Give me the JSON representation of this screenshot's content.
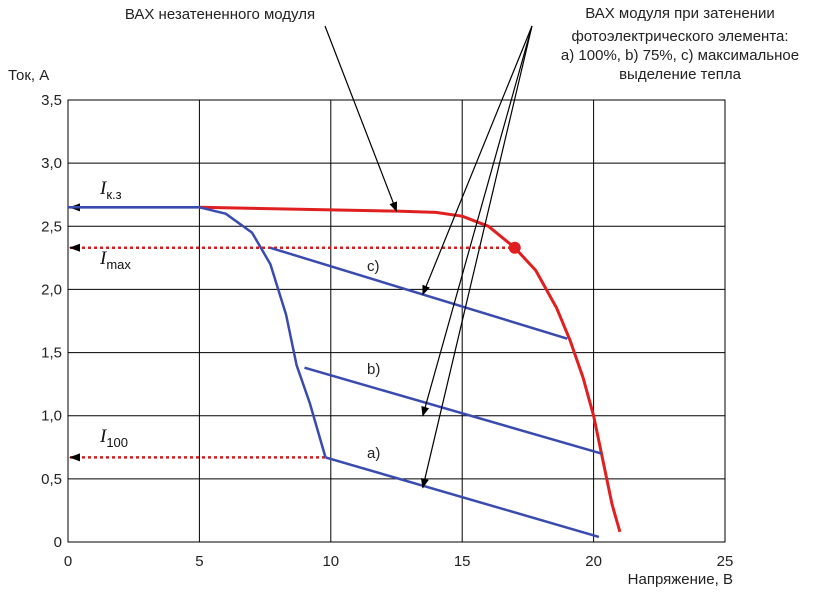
{
  "chart_data": {
    "type": "line",
    "title": "",
    "xlabel": "Напряжение, В",
    "ylabel": "Ток, А",
    "xlim": [
      0,
      25
    ],
    "ylim": [
      0,
      3.5
    ],
    "grid": true,
    "xticks": [
      0,
      5,
      10,
      15,
      20,
      25
    ],
    "yticks": [
      0.5,
      1.0,
      1.5,
      2.0,
      2.5,
      3.0,
      3.5
    ],
    "x_tick_labels": [
      "0",
      "5",
      "10",
      "15",
      "20",
      "25"
    ],
    "y_tick_labels": [
      "0,5",
      "1,0",
      "1,5",
      "2,0",
      "2,5",
      "3,0",
      "3,5"
    ],
    "y_origin_label": "0",
    "colors": {
      "unshaded": "#e02020",
      "shaded": "#3a4bb0",
      "guide": "#d42020",
      "grid": "#000000"
    },
    "series": [
      {
        "key": "unshaded",
        "points": [
          [
            5.0,
            2.65
          ],
          [
            10.0,
            2.63
          ],
          [
            12.5,
            2.62
          ],
          [
            14.0,
            2.61
          ],
          [
            15.0,
            2.58
          ],
          [
            16.0,
            2.5
          ],
          [
            17.0,
            2.33
          ],
          [
            17.8,
            2.15
          ],
          [
            18.6,
            1.85
          ],
          [
            19.1,
            1.6
          ],
          [
            19.6,
            1.3
          ],
          [
            20.0,
            1.0
          ],
          [
            20.4,
            0.6
          ],
          [
            20.7,
            0.3
          ],
          [
            21.0,
            0.08
          ]
        ]
      },
      {
        "key": "shaded",
        "points": [
          [
            0.0,
            2.65
          ],
          [
            5.0,
            2.65
          ],
          [
            6.0,
            2.6
          ],
          [
            7.0,
            2.45
          ],
          [
            7.7,
            2.2
          ],
          [
            8.3,
            1.8
          ],
          [
            8.7,
            1.4
          ],
          [
            9.2,
            1.1
          ],
          [
            9.8,
            0.67
          ]
        ]
      },
      {
        "key": "a",
        "name": "a)",
        "points": [
          [
            9.8,
            0.67
          ],
          [
            20.2,
            0.04
          ]
        ]
      },
      {
        "key": "b",
        "name": "b)",
        "points": [
          [
            9.0,
            1.38
          ],
          [
            20.3,
            0.7
          ]
        ]
      },
      {
        "key": "c",
        "name": "c)",
        "points": [
          [
            7.7,
            2.33
          ],
          [
            19.0,
            1.61
          ]
        ]
      }
    ],
    "guides": [
      {
        "key": "isc",
        "name": "Iк.з",
        "y": 2.65,
        "x_from": 0,
        "x_to": 5.0,
        "style": "solid"
      },
      {
        "key": "imax",
        "name": "Imax",
        "y": 2.33,
        "x_from": 0,
        "x_to": 17.0,
        "style": "dotted"
      },
      {
        "key": "i100",
        "name": "I100",
        "y": 0.67,
        "x_from": 0,
        "x_to": 9.8,
        "style": "dotted"
      }
    ],
    "marker": {
      "x": 17.0,
      "y": 2.33
    },
    "legend_symbols": {
      "isc": {
        "main": "I",
        "sub": "к.з"
      },
      "imax": {
        "main": "I",
        "sub": "max"
      },
      "i100": {
        "main": "I",
        "sub": "100"
      }
    },
    "annotations": {
      "unshaded": "ВАХ незатененного модуля",
      "shaded_title": "ВАХ модуля при затенении",
      "shaded_lines": [
        "фотоэлектрического элемента:",
        "а) 100%, b) 75%, с) максимальное",
        "выделение тепла"
      ],
      "label_a": "a)",
      "label_b": "b)",
      "label_c": "c)"
    }
  }
}
